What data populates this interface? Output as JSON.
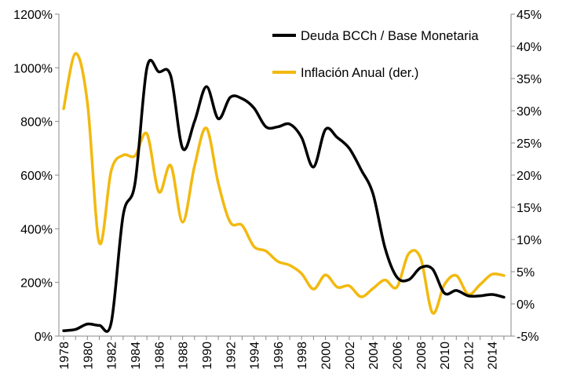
{
  "chart_data": {
    "type": "line",
    "title": "",
    "xlabel": "",
    "ylabel": "",
    "x_ticks": [
      "1978",
      "1980",
      "1982",
      "1984",
      "1986",
      "1988",
      "1990",
      "1992",
      "1994",
      "1996",
      "1998",
      "2000",
      "2002",
      "2004",
      "2006",
      "2008",
      "2010",
      "2012",
      "2014"
    ],
    "y_left": {
      "ylim": [
        0,
        1200
      ],
      "ticks": [
        0,
        200,
        400,
        600,
        800,
        1000,
        1200
      ],
      "tick_labels": [
        "0%",
        "200%",
        "400%",
        "600%",
        "800%",
        "1000%",
        "1200%"
      ]
    },
    "y_right": {
      "ylim": [
        -5,
        45
      ],
      "ticks": [
        -5,
        0,
        5,
        10,
        15,
        20,
        25,
        30,
        35,
        40,
        45
      ],
      "tick_labels": [
        "-5%",
        "0%",
        "5%",
        "10%",
        "15%",
        "20%",
        "25%",
        "30%",
        "35%",
        "40%",
        "45%"
      ]
    },
    "grid": false,
    "legend_position": "top-right",
    "series": [
      {
        "name": "Deuda BCCh / Base Monetaria",
        "axis": "left",
        "color": "#000000",
        "x": [
          1978,
          1979,
          1980,
          1981,
          1982,
          1983,
          1984,
          1985,
          1986,
          1987,
          1988,
          1989,
          1990,
          1991,
          1992,
          1993,
          1994,
          1995,
          1996,
          1997,
          1998,
          1999,
          2000,
          2001,
          2002,
          2003,
          2004,
          2005,
          2006,
          2007,
          2008,
          2009,
          2010,
          2011,
          2012,
          2013,
          2014,
          2015
        ],
        "values": [
          20,
          25,
          45,
          40,
          50,
          450,
          570,
          1000,
          985,
          970,
          700,
          800,
          930,
          810,
          890,
          885,
          850,
          780,
          780,
          790,
          740,
          630,
          770,
          740,
          700,
          620,
          530,
          330,
          220,
          210,
          255,
          250,
          160,
          170,
          150,
          150,
          155,
          145
        ]
      },
      {
        "name": "Inflación Anual (der.)",
        "axis": "right",
        "color": "#F2B90F",
        "x": [
          1978,
          1979,
          1980,
          1981,
          1982,
          1983,
          1984,
          1985,
          1986,
          1987,
          1988,
          1989,
          1990,
          1991,
          1992,
          1993,
          1994,
          1995,
          1996,
          1997,
          1998,
          1999,
          2000,
          2001,
          2002,
          2003,
          2004,
          2005,
          2006,
          2007,
          2008,
          2009,
          2010,
          2011,
          2012,
          2013,
          2014,
          2015
        ],
        "values": [
          30.3,
          38.9,
          31.2,
          9.5,
          20.7,
          23.1,
          23.0,
          26.4,
          17.4,
          21.5,
          12.7,
          21.4,
          27.3,
          18.7,
          12.7,
          12.2,
          8.9,
          8.2,
          6.6,
          6.0,
          4.7,
          2.3,
          4.5,
          2.6,
          2.8,
          1.1,
          2.4,
          3.7,
          2.6,
          7.8,
          7.1,
          -1.4,
          3.0,
          4.4,
          1.5,
          3.0,
          4.6,
          4.4
        ]
      }
    ]
  }
}
